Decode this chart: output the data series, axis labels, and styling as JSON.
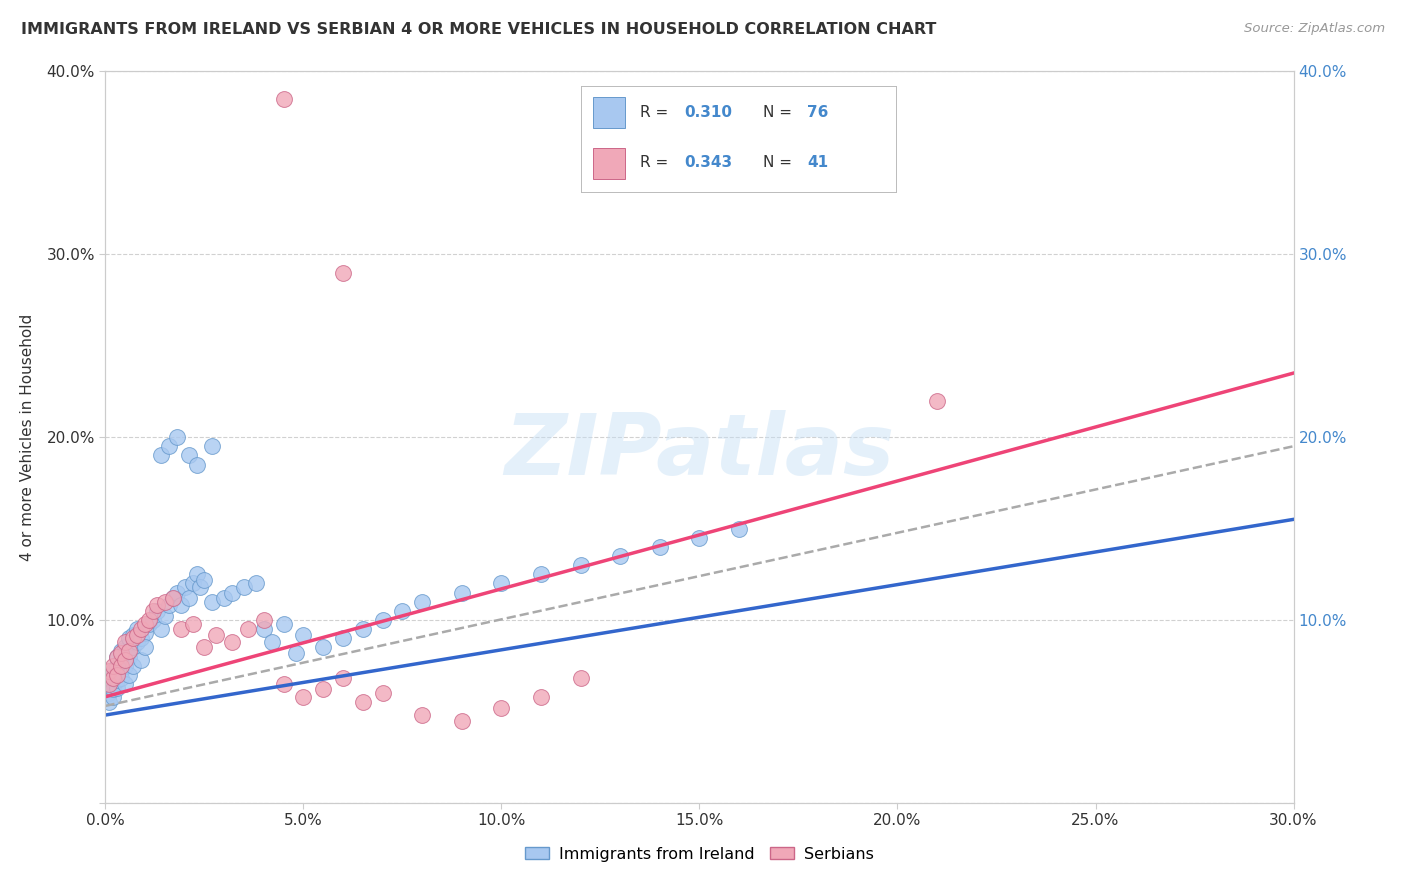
{
  "title": "IMMIGRANTS FROM IRELAND VS SERBIAN 4 OR MORE VEHICLES IN HOUSEHOLD CORRELATION CHART",
  "source": "Source: ZipAtlas.com",
  "ylabel": "4 or more Vehicles in Household",
  "xlim": [
    0.0,
    0.3
  ],
  "ylim": [
    0.0,
    0.4
  ],
  "x_ticks": [
    0.0,
    0.05,
    0.1,
    0.15,
    0.2,
    0.25,
    0.3
  ],
  "x_tick_labels": [
    "0.0%",
    "5.0%",
    "10.0%",
    "15.0%",
    "20.0%",
    "25.0%",
    "30.0%"
  ],
  "y_ticks": [
    0.0,
    0.1,
    0.2,
    0.3,
    0.4
  ],
  "y_tick_labels": [
    "",
    "10.0%",
    "20.0%",
    "30.0%",
    "40.0%"
  ],
  "ireland_fill": "#a8c8f0",
  "ireland_edge": "#6699cc",
  "serbian_fill": "#f0a8b8",
  "serbian_edge": "#cc6688",
  "line_ireland": "#3366cc",
  "line_serbian": "#ee4477",
  "line_dashed": "#aaaaaa",
  "R_ireland": 0.31,
  "N_ireland": 76,
  "R_serbian": 0.343,
  "N_serbian": 41,
  "legend_label_ireland": "Immigrants from Ireland",
  "legend_label_serbian": "Serbians",
  "watermark": "ZIPatlas",
  "text_blue": "#4488cc",
  "text_dark": "#333333",
  "text_source": "#999999",
  "grid_color": "#cccccc",
  "background": "#ffffff",
  "ireland_x": [
    0.001,
    0.001,
    0.001,
    0.002,
    0.002,
    0.002,
    0.002,
    0.003,
    0.003,
    0.003,
    0.003,
    0.003,
    0.004,
    0.004,
    0.004,
    0.004,
    0.005,
    0.005,
    0.005,
    0.006,
    0.006,
    0.006,
    0.007,
    0.007,
    0.007,
    0.008,
    0.008,
    0.009,
    0.009,
    0.01,
    0.01,
    0.011,
    0.012,
    0.013,
    0.014,
    0.015,
    0.016,
    0.017,
    0.018,
    0.019,
    0.02,
    0.021,
    0.022,
    0.023,
    0.024,
    0.025,
    0.027,
    0.03,
    0.032,
    0.035,
    0.038,
    0.04,
    0.042,
    0.045,
    0.048,
    0.05,
    0.055,
    0.06,
    0.065,
    0.07,
    0.075,
    0.08,
    0.09,
    0.1,
    0.11,
    0.12,
    0.13,
    0.14,
    0.15,
    0.16,
    0.014,
    0.016,
    0.018,
    0.021,
    0.023,
    0.027
  ],
  "ireland_y": [
    0.06,
    0.055,
    0.065,
    0.058,
    0.062,
    0.068,
    0.072,
    0.063,
    0.07,
    0.075,
    0.08,
    0.067,
    0.072,
    0.078,
    0.068,
    0.083,
    0.075,
    0.085,
    0.065,
    0.08,
    0.09,
    0.07,
    0.085,
    0.092,
    0.075,
    0.088,
    0.095,
    0.09,
    0.078,
    0.093,
    0.085,
    0.098,
    0.1,
    0.105,
    0.095,
    0.102,
    0.108,
    0.112,
    0.115,
    0.108,
    0.118,
    0.112,
    0.12,
    0.125,
    0.118,
    0.122,
    0.11,
    0.112,
    0.115,
    0.118,
    0.12,
    0.095,
    0.088,
    0.098,
    0.082,
    0.092,
    0.085,
    0.09,
    0.095,
    0.1,
    0.105,
    0.11,
    0.115,
    0.12,
    0.125,
    0.13,
    0.135,
    0.14,
    0.145,
    0.15,
    0.19,
    0.195,
    0.2,
    0.19,
    0.185,
    0.195
  ],
  "serbian_x": [
    0.001,
    0.001,
    0.002,
    0.002,
    0.003,
    0.003,
    0.004,
    0.004,
    0.005,
    0.005,
    0.006,
    0.007,
    0.008,
    0.009,
    0.01,
    0.011,
    0.012,
    0.013,
    0.015,
    0.017,
    0.019,
    0.022,
    0.025,
    0.028,
    0.032,
    0.036,
    0.04,
    0.045,
    0.05,
    0.055,
    0.06,
    0.065,
    0.07,
    0.08,
    0.09,
    0.1,
    0.11,
    0.12,
    0.21,
    0.045,
    0.06
  ],
  "serbian_y": [
    0.065,
    0.072,
    0.068,
    0.075,
    0.07,
    0.08,
    0.075,
    0.082,
    0.078,
    0.088,
    0.083,
    0.09,
    0.092,
    0.095,
    0.098,
    0.1,
    0.105,
    0.108,
    0.11,
    0.112,
    0.095,
    0.098,
    0.085,
    0.092,
    0.088,
    0.095,
    0.1,
    0.065,
    0.058,
    0.062,
    0.068,
    0.055,
    0.06,
    0.048,
    0.045,
    0.052,
    0.058,
    0.068,
    0.22,
    0.385,
    0.29
  ]
}
